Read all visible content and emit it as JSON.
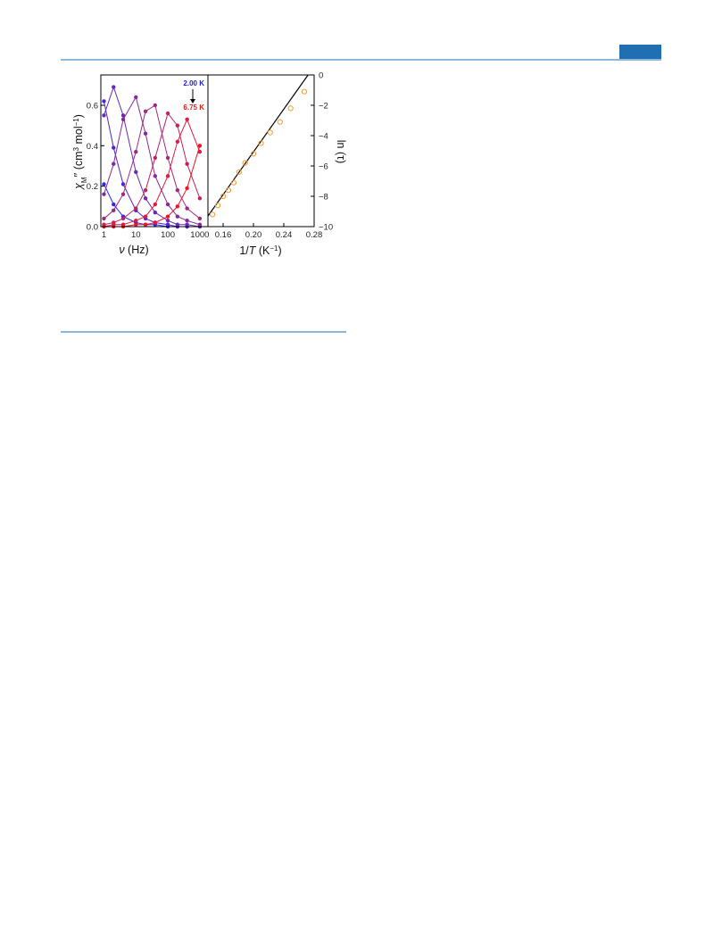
{
  "chart_data": [
    {
      "type": "line",
      "log_x": true,
      "marker": "filled",
      "x": [
        1,
        2,
        4,
        10,
        20,
        40,
        100,
        200,
        400,
        1000
      ],
      "xlim": [
        0.8,
        1800
      ],
      "xticks": [
        1,
        10,
        100,
        1000
      ],
      "ylim": [
        0,
        0.75
      ],
      "yticks": [
        {
          "value": 0,
          "label": "0.0"
        },
        0.2,
        0.4,
        0.6
      ],
      "xlabel": [
        "ν",
        " (Hz)"
      ],
      "ylabel": [
        "χ",
        "M",
        "′′ (cm",
        "3",
        " mol",
        "−1",
        ")"
      ],
      "annotations": [
        {
          "text": "2.00 K",
          "color": "#1c1cd6"
        },
        {
          "text": "6.75 K",
          "color": "#e81c1c"
        }
      ],
      "series": [
        {
          "color": "#2a2af0",
          "values": [
            0.21,
            0.11,
            0.05,
            0.02,
            0.01,
            0.01,
            0.0,
            0.0,
            0.0,
            0.0
          ]
        },
        {
          "color": "#4a26d4",
          "values": [
            0.62,
            0.39,
            0.21,
            0.08,
            0.04,
            0.02,
            0.01,
            0.0,
            0.0,
            0.0
          ]
        },
        {
          "color": "#6a2ab4",
          "values": [
            0.55,
            0.69,
            0.55,
            0.27,
            0.14,
            0.07,
            0.03,
            0.01,
            0.01,
            0.0
          ]
        },
        {
          "color": "#862a9a",
          "values": [
            0.16,
            0.31,
            0.53,
            0.64,
            0.46,
            0.25,
            0.11,
            0.05,
            0.03,
            0.01
          ]
        },
        {
          "color": "#a22880",
          "values": [
            0.04,
            0.08,
            0.16,
            0.37,
            0.57,
            0.6,
            0.34,
            0.18,
            0.09,
            0.04
          ]
        },
        {
          "color": "#c02262",
          "values": [
            0.01,
            0.02,
            0.04,
            0.09,
            0.18,
            0.34,
            0.56,
            0.5,
            0.31,
            0.14
          ]
        },
        {
          "color": "#dc1c42",
          "values": [
            0.0,
            0.01,
            0.01,
            0.03,
            0.05,
            0.11,
            0.25,
            0.42,
            0.53,
            0.37
          ]
        },
        {
          "color": "#f21424",
          "values": [
            0.0,
            0.0,
            0.0,
            0.01,
            0.01,
            0.02,
            0.05,
            0.1,
            0.19,
            0.4
          ]
        }
      ]
    },
    {
      "type": "scatter",
      "y_side": "right",
      "marker": "open",
      "color": "#f39a30",
      "x": [
        0.146,
        0.153,
        0.16,
        0.167,
        0.174,
        0.181,
        0.189,
        0.2,
        0.21,
        0.222,
        0.235,
        0.249,
        0.267
      ],
      "values": [
        -9.2,
        -8.6,
        -8.0,
        -7.6,
        -7.1,
        -6.4,
        -5.8,
        -5.2,
        -4.5,
        -3.8,
        -3.1,
        -2.2,
        -1.1
      ],
      "fit": {
        "color": "#000000",
        "x": [
          0.14,
          0.272
        ],
        "values": [
          -9.3,
          0
        ]
      },
      "xlim": [
        0.14,
        0.28
      ],
      "xticks": [
        0.16,
        {
          "value": 0.2,
          "label": "0.20"
        },
        0.24,
        0.28
      ],
      "ylim": [
        -10,
        0
      ],
      "yticks": [
        {
          "value": -10,
          "label": "−10"
        },
        {
          "value": -8,
          "label": "−8"
        },
        {
          "value": -6,
          "label": "−6"
        },
        {
          "value": -4,
          "label": "−4"
        },
        {
          "value": -2,
          "label": "−2"
        },
        0
      ],
      "xlabel": [
        "1/",
        "T",
        " (K",
        "−1",
        ")"
      ],
      "ylabel": "ln (τ)"
    }
  ]
}
